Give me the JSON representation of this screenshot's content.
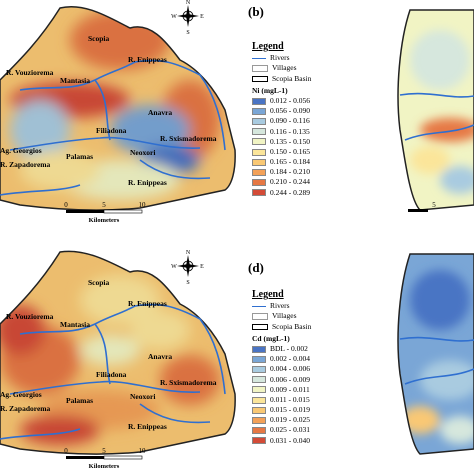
{
  "panels": {
    "b": {
      "label": "(b)"
    },
    "d": {
      "label": "(d)"
    }
  },
  "scale_bar": {
    "ticks": [
      "0",
      "5",
      "10"
    ],
    "unit": "Kilometers"
  },
  "north_arrow": {
    "n": "N",
    "s": "S",
    "e": "E",
    "w": "W"
  },
  "place_labels": {
    "scopia": "Scopia",
    "r_enippeas_north": "R. Enippeas",
    "r_vouziorema": "R. Vouziorema",
    "mantasia": "Mantasia",
    "anavra": "Anavra",
    "filiadona": "Filiadona",
    "r_sxismadorema": "R. Sxismadorema",
    "neoxori": "Neoxori",
    "ag_georgios": "Ag. Georgios",
    "palamas": "Palamas",
    "r_zapadorema": "R. Zapadorema",
    "r_enippeas_south": "R. Enippeas"
  },
  "legend_top": {
    "title": "Legend",
    "rivers": "Rivers",
    "villages": "Villages",
    "basin": "Scopia Basin",
    "variable": "Ni (mgL-1)",
    "classes": [
      {
        "label": "0.012 - 0.056",
        "color": "#4a74c4"
      },
      {
        "label": "0.056 - 0.090",
        "color": "#7aa6d6"
      },
      {
        "label": "0.090 - 0.116",
        "color": "#a9cbe0"
      },
      {
        "label": "0.116 - 0.135",
        "color": "#d6e7dd"
      },
      {
        "label": "0.135 - 0.150",
        "color": "#f1f4c4"
      },
      {
        "label": "0.150 - 0.165",
        "color": "#fbe59a"
      },
      {
        "label": "0.165 - 0.184",
        "color": "#f9c874"
      },
      {
        "label": "0.184 - 0.210",
        "color": "#f3a158"
      },
      {
        "label": "0.210 - 0.244",
        "color": "#e67844"
      },
      {
        "label": "0.244 - 0.289",
        "color": "#d34b37"
      }
    ]
  },
  "legend_bottom": {
    "title": "Legend",
    "rivers": "Rivers",
    "villages": "Villages",
    "basin": "Scopia Basin",
    "variable": "Cd (mgL-1)",
    "classes": [
      {
        "label": "BDL - 0.002",
        "color": "#4a74c4"
      },
      {
        "label": "0.002 - 0.004",
        "color": "#7aa6d6"
      },
      {
        "label": "0.004 - 0.006",
        "color": "#a9cbe0"
      },
      {
        "label": "0.006 - 0.009",
        "color": "#d6e7dd"
      },
      {
        "label": "0.009 - 0.011",
        "color": "#f1f4c4"
      },
      {
        "label": "0.011 - 0.015",
        "color": "#fbe59a"
      },
      {
        "label": "0.015 - 0.019",
        "color": "#f9c874"
      },
      {
        "label": "0.019 - 0.025",
        "color": "#f3a158"
      },
      {
        "label": "0.025 - 0.031",
        "color": "#e67844"
      },
      {
        "label": "0.031 - 0.040",
        "color": "#d34b37"
      }
    ]
  }
}
